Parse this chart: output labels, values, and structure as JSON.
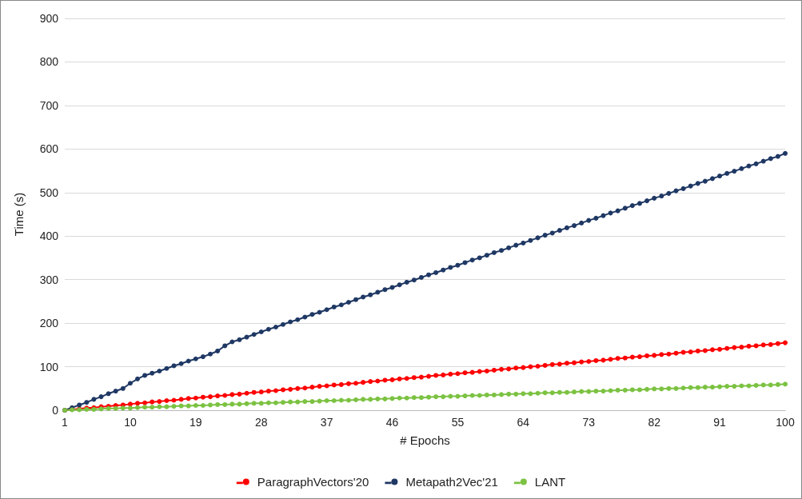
{
  "chart_data": {
    "type": "line",
    "xlabel": "# Epochs",
    "ylabel": "Time (s)",
    "categories": [
      "1",
      null,
      null,
      null,
      null,
      null,
      null,
      null,
      null,
      "10",
      null,
      null,
      null,
      null,
      null,
      null,
      null,
      null,
      "19",
      null,
      null,
      null,
      null,
      null,
      null,
      null,
      null,
      "28",
      null,
      null,
      null,
      null,
      null,
      null,
      null,
      null,
      "37",
      null,
      null,
      null,
      null,
      null,
      null,
      null,
      null,
      "46",
      null,
      null,
      null,
      null,
      null,
      null,
      null,
      null,
      "55",
      null,
      null,
      null,
      null,
      null,
      null,
      null,
      null,
      "64",
      null,
      null,
      null,
      null,
      null,
      null,
      null,
      null,
      "73",
      null,
      null,
      null,
      null,
      null,
      null,
      null,
      null,
      "82",
      null,
      null,
      null,
      null,
      null,
      null,
      null,
      null,
      "91",
      null,
      null,
      null,
      null,
      null,
      null,
      null,
      null,
      "100"
    ],
    "series": [
      {
        "name": "ParagraphVectors'20",
        "color": "#ff0000",
        "values": [
          0,
          2,
          3,
          5,
          6,
          8,
          9,
          11,
          12,
          14,
          16,
          17,
          19,
          20,
          22,
          23,
          25,
          27,
          28,
          30,
          31,
          33,
          34,
          36,
          37,
          39,
          41,
          42,
          44,
          45,
          47,
          48,
          50,
          51,
          53,
          55,
          56,
          58,
          59,
          61,
          62,
          64,
          66,
          67,
          69,
          70,
          72,
          73,
          75,
          76,
          78,
          80,
          81,
          83,
          84,
          86,
          87,
          89,
          90,
          92,
          94,
          95,
          97,
          98,
          100,
          101,
          103,
          105,
          106,
          108,
          109,
          111,
          112,
          114,
          115,
          117,
          119,
          120,
          122,
          123,
          125,
          126,
          128,
          129,
          131,
          133,
          134,
          136,
          137,
          139,
          140,
          142,
          144,
          145,
          147,
          148,
          150,
          151,
          153,
          155
        ]
      },
      {
        "name": "Metapath2Vec'21",
        "color": "#1f3864",
        "values": [
          0,
          6,
          12,
          18,
          25,
          31,
          38,
          44,
          50,
          62,
          72,
          80,
          85,
          90,
          96,
          102,
          107,
          113,
          118,
          123,
          129,
          136,
          148,
          157,
          162,
          168,
          174,
          180,
          186,
          191,
          197,
          203,
          208,
          214,
          220,
          225,
          231,
          237,
          242,
          248,
          254,
          260,
          265,
          271,
          277,
          282,
          288,
          294,
          299,
          305,
          311,
          316,
          322,
          328,
          333,
          339,
          345,
          350,
          356,
          362,
          367,
          373,
          379,
          384,
          390,
          396,
          402,
          407,
          413,
          419,
          424,
          430,
          436,
          441,
          447,
          453,
          458,
          464,
          470,
          475,
          481,
          487,
          492,
          498,
          504,
          509,
          515,
          521,
          526,
          532,
          538,
          544,
          549,
          555,
          561,
          566,
          572,
          578,
          583,
          590
        ]
      },
      {
        "name": "LANT",
        "color": "#7cc242",
        "values": [
          0,
          1,
          1,
          2,
          2,
          3,
          4,
          4,
          5,
          5,
          6,
          7,
          7,
          8,
          8,
          9,
          10,
          10,
          11,
          11,
          12,
          13,
          13,
          14,
          14,
          15,
          16,
          16,
          17,
          17,
          18,
          19,
          19,
          20,
          20,
          21,
          22,
          22,
          23,
          23,
          24,
          25,
          25,
          26,
          26,
          27,
          28,
          28,
          29,
          29,
          30,
          31,
          31,
          32,
          32,
          33,
          34,
          34,
          35,
          35,
          36,
          37,
          37,
          38,
          38,
          39,
          40,
          40,
          41,
          41,
          42,
          43,
          43,
          44,
          44,
          45,
          46,
          46,
          47,
          47,
          48,
          49,
          49,
          50,
          50,
          51,
          52,
          52,
          53,
          53,
          54,
          55,
          55,
          56,
          56,
          57,
          58,
          58,
          59,
          60
        ]
      }
    ],
    "ylim": [
      0,
      900
    ],
    "yticks": [
      0,
      100,
      200,
      300,
      400,
      500,
      600,
      700,
      800,
      900
    ],
    "grid": "y",
    "legend": "bottom",
    "marker": "circle",
    "line_style": "solid"
  }
}
